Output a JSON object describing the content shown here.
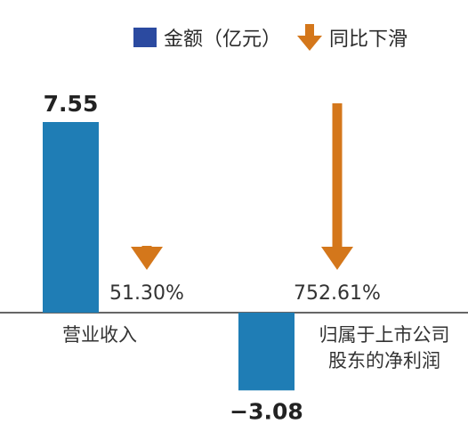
{
  "chart_data": {
    "type": "bar",
    "categories": [
      "营业收入",
      "归属于上市公司股东的净利润"
    ],
    "category_lines": [
      [
        "营业收入"
      ],
      [
        "归属于上市公司",
        "股东的净利润"
      ]
    ],
    "series": [
      {
        "name": "金额（亿元）",
        "values": [
          7.55,
          -3.08
        ],
        "labels": [
          "7.55",
          "−3.08"
        ],
        "color": "#1f7db5"
      },
      {
        "name": "同比下滑",
        "values": [
          51.3,
          752.61
        ],
        "labels": [
          "51.30%",
          "752.61%"
        ],
        "color": "#d4771b"
      }
    ],
    "legend_position": "top-right",
    "grid": false,
    "colors": {
      "bar": "#1f7db5",
      "arrow": "#d4771b",
      "legend_swatch": "#2b4aa0",
      "axis": "#333333"
    }
  },
  "legend": {
    "amount_label": "金额（亿元）",
    "decline_label": "同比下滑"
  }
}
